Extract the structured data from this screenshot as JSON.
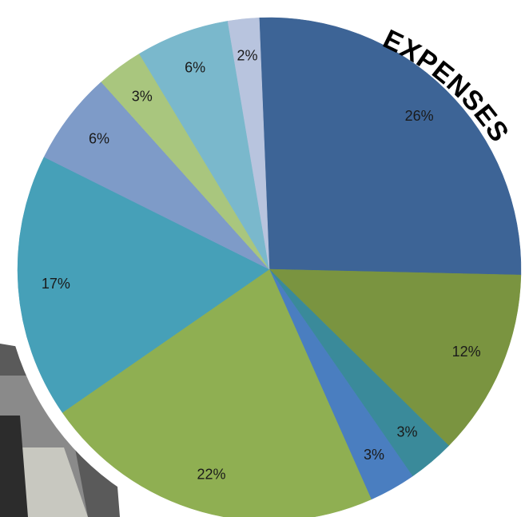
{
  "chart_data": {
    "type": "pie",
    "title": "EXPENSES",
    "values": [
      26,
      12,
      3,
      3,
      22,
      17,
      6,
      3,
      6,
      2
    ],
    "value_labels": [
      "26%",
      "12%",
      "3%",
      "3%",
      "22%",
      "17%",
      "6%",
      "3%",
      "6%",
      "2%"
    ],
    "colors": [
      "#3d6496",
      "#7a9440",
      "#3a8a9a",
      "#4a7ec0",
      "#8faf52",
      "#46a0b8",
      "#7e9bc8",
      "#a9c67e",
      "#7ab8cc",
      "#b8c4de"
    ]
  }
}
